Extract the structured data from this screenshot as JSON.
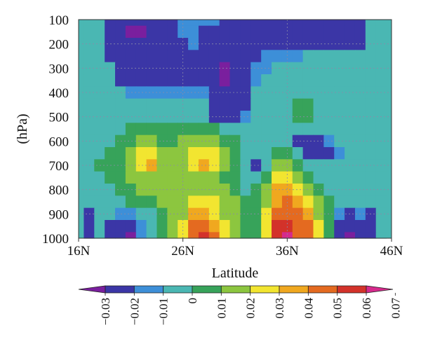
{
  "chart_data": {
    "type": "heatmap",
    "title": "",
    "xlabel": "Latitude",
    "ylabel": "(hPa)",
    "x_ticks": [
      "16N",
      "26N",
      "36N",
      "46N"
    ],
    "x_tick_values": [
      16,
      26,
      36,
      46
    ],
    "y_ticks": [
      "100",
      "200",
      "300",
      "400",
      "500",
      "600",
      "700",
      "800",
      "900",
      "1000"
    ],
    "y_tick_values": [
      100,
      200,
      300,
      400,
      500,
      600,
      700,
      800,
      900,
      1000
    ],
    "xlim": [
      16,
      46
    ],
    "ylim": [
      1000,
      100
    ],
    "grid": true,
    "colorbar": {
      "orientation": "horizontal",
      "levels": [
        -0.03,
        -0.02,
        -0.01,
        0,
        0.01,
        0.02,
        0.03,
        0.04,
        0.05,
        0.06,
        0.07
      ],
      "tick_labels": [
        "−0.03",
        "−0.02",
        "−0.01",
        "0",
        "0.01",
        "0.02",
        "0.03",
        "0.04",
        "0.05",
        "0.06",
        "0.07"
      ],
      "colors": [
        "#7a1f9e",
        "#3b36a6",
        "#3d8fd8",
        "#4ab7b3",
        "#37a35a",
        "#8cc63f",
        "#f2e530",
        "#f0a81f",
        "#e46a20",
        "#d3322a",
        "#d62a8c"
      ],
      "extend": "both"
    },
    "x": [
      17,
      18,
      19,
      20,
      21,
      22,
      23,
      24,
      25,
      26,
      27,
      28,
      29,
      30,
      31,
      32,
      33,
      34,
      35,
      36,
      37,
      38,
      39,
      40,
      41,
      42,
      43,
      44,
      45
    ],
    "y": [
      100,
      150,
      200,
      250,
      300,
      350,
      400,
      450,
      500,
      550,
      600,
      650,
      700,
      750,
      800,
      850,
      900,
      950,
      1000
    ],
    "z": [
      [
        0.0,
        0.0,
        -0.02,
        -0.02,
        -0.02,
        -0.02,
        -0.02,
        -0.02,
        -0.02,
        -0.01,
        -0.01,
        -0.01,
        -0.01,
        -0.02,
        -0.02,
        -0.02,
        -0.02,
        -0.02,
        -0.02,
        -0.02,
        -0.02,
        -0.02,
        -0.02,
        -0.02,
        -0.02,
        -0.02,
        -0.02,
        0.0,
        0.0
      ],
      [
        0.0,
        0.0,
        -0.02,
        -0.02,
        -0.03,
        -0.03,
        -0.02,
        -0.02,
        -0.02,
        -0.01,
        -0.01,
        -0.02,
        -0.02,
        -0.02,
        -0.02,
        -0.02,
        -0.02,
        -0.02,
        -0.02,
        -0.02,
        -0.02,
        -0.02,
        -0.02,
        -0.02,
        -0.02,
        -0.02,
        -0.02,
        0.0,
        0.0
      ],
      [
        0.0,
        0.0,
        -0.02,
        -0.02,
        -0.02,
        -0.02,
        -0.02,
        -0.02,
        -0.02,
        -0.02,
        -0.01,
        -0.02,
        -0.02,
        -0.02,
        -0.02,
        -0.02,
        -0.02,
        -0.02,
        -0.02,
        -0.02,
        -0.02,
        -0.02,
        -0.02,
        -0.02,
        -0.02,
        -0.02,
        -0.02,
        0.0,
        0.0
      ],
      [
        0.0,
        0.0,
        -0.02,
        -0.02,
        -0.02,
        -0.02,
        -0.02,
        -0.02,
        -0.02,
        -0.02,
        -0.02,
        -0.02,
        -0.02,
        -0.02,
        -0.02,
        -0.02,
        -0.02,
        -0.01,
        -0.01,
        -0.01,
        -0.01,
        0.0,
        0.0,
        0.0,
        0.0,
        0.0,
        0.0,
        0.0,
        0.0
      ],
      [
        0.0,
        0.0,
        0.0,
        -0.02,
        -0.02,
        -0.02,
        -0.02,
        -0.02,
        -0.02,
        -0.02,
        -0.02,
        -0.02,
        -0.02,
        -0.03,
        -0.02,
        -0.02,
        -0.01,
        -0.01,
        0.0,
        0.0,
        0.0,
        0.0,
        0.0,
        0.0,
        0.0,
        0.0,
        0.0,
        0.0,
        0.0
      ],
      [
        0.0,
        0.0,
        0.0,
        -0.02,
        -0.02,
        -0.02,
        -0.02,
        -0.02,
        -0.02,
        -0.02,
        -0.02,
        -0.02,
        -0.02,
        -0.03,
        -0.02,
        -0.02,
        -0.01,
        0.0,
        0.0,
        0.0,
        0.0,
        0.0,
        0.0,
        0.0,
        0.0,
        0.0,
        0.0,
        0.0,
        0.0
      ],
      [
        0.0,
        0.0,
        0.0,
        0.0,
        -0.01,
        -0.01,
        -0.01,
        -0.01,
        -0.01,
        -0.01,
        -0.01,
        -0.01,
        -0.02,
        -0.02,
        -0.02,
        -0.02,
        0.0,
        0.0,
        0.0,
        0.0,
        0.0,
        0.0,
        0.0,
        0.0,
        0.0,
        0.0,
        0.0,
        0.0,
        0.0
      ],
      [
        0.0,
        0.0,
        0.0,
        0.0,
        0.0,
        0.0,
        0.0,
        0.0,
        0.0,
        0.0,
        0.0,
        0.0,
        -0.02,
        -0.02,
        -0.02,
        -0.02,
        0.0,
        0.0,
        0.0,
        0.0,
        0.01,
        0.01,
        0.0,
        0.0,
        0.0,
        0.0,
        0.0,
        0.0,
        0.0
      ],
      [
        0.0,
        0.0,
        0.0,
        0.0,
        0.0,
        0.0,
        0.0,
        0.0,
        0.0,
        0.0,
        0.0,
        0.0,
        -0.02,
        -0.02,
        -0.02,
        -0.01,
        0.0,
        0.0,
        0.0,
        0.0,
        0.01,
        0.01,
        0.0,
        0.0,
        0.0,
        0.0,
        0.0,
        0.0,
        0.0
      ],
      [
        0.0,
        0.0,
        0.0,
        0.0,
        0.01,
        0.01,
        0.01,
        0.01,
        0.01,
        0.01,
        0.01,
        0.01,
        0.01,
        0.0,
        0.0,
        0.0,
        0.0,
        0.0,
        0.0,
        0.0,
        0.0,
        0.0,
        0.0,
        0.0,
        0.0,
        0.0,
        0.0,
        0.0,
        0.0
      ],
      [
        0.0,
        0.0,
        0.0,
        0.01,
        0.01,
        0.02,
        0.02,
        0.01,
        0.01,
        0.02,
        0.02,
        0.02,
        0.02,
        0.01,
        0.01,
        0.0,
        0.0,
        0.0,
        0.0,
        0.0,
        -0.02,
        -0.02,
        -0.02,
        -0.01,
        0.0,
        0.0,
        0.0,
        0.0,
        0.0
      ],
      [
        0.0,
        0.0,
        0.01,
        0.01,
        0.02,
        0.03,
        0.03,
        0.02,
        0.02,
        0.02,
        0.03,
        0.03,
        0.03,
        0.02,
        0.01,
        0.0,
        0.0,
        0.0,
        0.01,
        0.01,
        0.0,
        -0.02,
        -0.02,
        -0.02,
        -0.01,
        0.0,
        0.0,
        0.0,
        0.0
      ],
      [
        0.0,
        0.01,
        0.01,
        0.01,
        0.02,
        0.03,
        0.04,
        0.02,
        0.02,
        0.02,
        0.03,
        0.04,
        0.03,
        0.02,
        0.01,
        0.0,
        -0.02,
        0.0,
        0.02,
        0.02,
        0.01,
        0.0,
        0.0,
        0.0,
        0.0,
        0.0,
        0.0,
        0.0,
        0.0
      ],
      [
        0.0,
        0.0,
        0.01,
        0.01,
        0.02,
        0.02,
        0.02,
        0.02,
        0.02,
        0.02,
        0.02,
        0.02,
        0.02,
        0.01,
        0.01,
        0.0,
        0.0,
        0.01,
        0.03,
        0.03,
        0.02,
        0.01,
        0.0,
        0.0,
        0.0,
        0.0,
        0.0,
        0.0,
        0.0
      ],
      [
        0.0,
        0.0,
        0.0,
        0.01,
        0.01,
        0.02,
        0.02,
        0.02,
        0.02,
        0.02,
        0.02,
        0.02,
        0.02,
        0.02,
        0.01,
        0.0,
        0.01,
        0.02,
        0.04,
        0.04,
        0.03,
        0.02,
        0.01,
        0.0,
        0.0,
        0.0,
        0.0,
        0.0,
        0.0
      ],
      [
        0.0,
        0.0,
        0.0,
        0.0,
        0.01,
        0.01,
        0.01,
        0.02,
        0.02,
        0.02,
        0.03,
        0.03,
        0.03,
        0.02,
        0.02,
        0.01,
        0.01,
        0.02,
        0.04,
        0.05,
        0.04,
        0.03,
        0.02,
        0.01,
        0.0,
        0.0,
        0.0,
        0.0,
        0.0
      ],
      [
        -0.02,
        0.0,
        0.0,
        -0.01,
        -0.01,
        0.0,
        0.0,
        0.01,
        0.02,
        0.02,
        0.04,
        0.04,
        0.03,
        0.02,
        0.02,
        0.01,
        0.01,
        0.03,
        0.05,
        0.05,
        0.05,
        0.04,
        0.02,
        0.01,
        -0.01,
        -0.02,
        -0.01,
        -0.02,
        0.0
      ],
      [
        -0.02,
        0.0,
        -0.02,
        -0.02,
        -0.02,
        -0.01,
        0.0,
        0.01,
        0.02,
        0.03,
        0.05,
        0.05,
        0.04,
        0.03,
        0.02,
        0.01,
        0.01,
        0.03,
        0.06,
        0.06,
        0.05,
        0.05,
        0.03,
        0.01,
        -0.02,
        -0.02,
        -0.02,
        -0.02,
        0.0
      ],
      [
        -0.02,
        0.0,
        -0.02,
        -0.02,
        -0.03,
        -0.01,
        0.0,
        0.01,
        0.02,
        0.03,
        0.05,
        0.06,
        0.05,
        0.03,
        0.02,
        0.01,
        0.01,
        0.03,
        0.06,
        0.07,
        0.05,
        0.05,
        0.03,
        0.01,
        -0.02,
        -0.03,
        -0.02,
        -0.02,
        0.0
      ]
    ]
  }
}
